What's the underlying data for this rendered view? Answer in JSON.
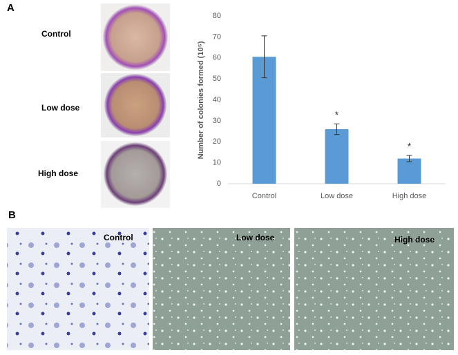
{
  "figure": {
    "panel_a_label": "A",
    "panel_b_label": "B",
    "plate_labels": [
      "Control",
      "Low dose",
      "High dose"
    ],
    "micro_labels": [
      "Control",
      "Low dose",
      "High dose"
    ]
  },
  "chart_data": {
    "type": "bar",
    "y_label": "Number of colonies formed (10⁵)",
    "categories": [
      "Control",
      "Low dose",
      "High dose"
    ],
    "values": [
      60.5,
      26,
      12
    ],
    "errors": [
      10,
      2.5,
      1.5
    ],
    "annotations": [
      null,
      "*",
      "*"
    ],
    "color": "#5b9bd5",
    "ylim": [
      0,
      80
    ],
    "yticks": [
      0,
      10,
      20,
      30,
      40,
      50,
      60,
      70,
      80
    ]
  }
}
